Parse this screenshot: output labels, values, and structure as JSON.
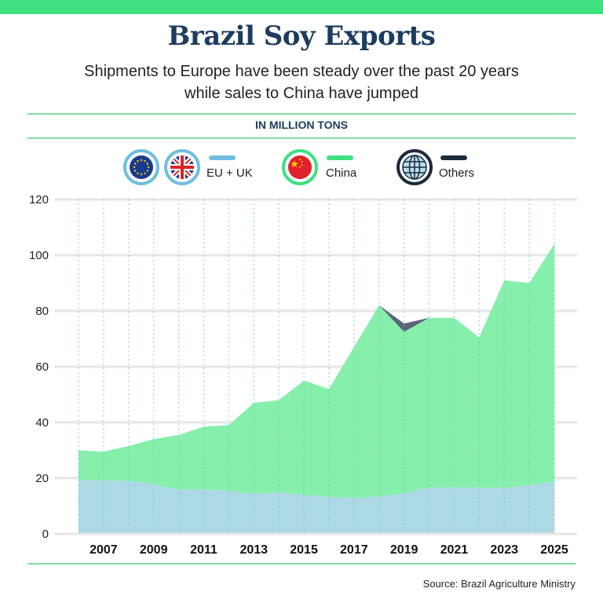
{
  "header": {
    "title": "Brazil Soy Exports",
    "subtitle_line1": "Shipments to Europe have been steady over the past 20 years",
    "subtitle_line2": "while sales to China have jumped",
    "unit": "IN MILLION TONS"
  },
  "legend": [
    {
      "label": "EU + UK",
      "color": "#6fbedf",
      "icons": [
        "eu-flag-icon",
        "uk-flag-icon"
      ]
    },
    {
      "label": "China",
      "color": "#3ee07f",
      "icons": [
        "china-flag-icon"
      ]
    },
    {
      "label": "Others",
      "color": "#1c2a3a",
      "icons": [
        "globe-icon"
      ]
    }
  ],
  "colors": {
    "accent": "#3ee07f",
    "title": "#1d3c5e",
    "eu_area": "#add8e6",
    "china_area": "#86efab",
    "others_area": "#5a6577"
  },
  "footer": {
    "source": "Source: Brazil Agriculture Ministry"
  },
  "chart_data": {
    "type": "area",
    "stacked": true,
    "title": "Brazil Soy Exports",
    "ylabel": "IN MILLION TONS",
    "ylim": [
      0,
      120
    ],
    "yticks": [
      0,
      20,
      40,
      60,
      80,
      100,
      120
    ],
    "grid": true,
    "legend_position": "top",
    "x": [
      2006,
      2007,
      2008,
      2009,
      2010,
      2011,
      2012,
      2013,
      2014,
      2015,
      2016,
      2017,
      2018,
      2019,
      2020,
      2021,
      2022,
      2023,
      2024,
      2025
    ],
    "xtick_labels": [
      "2007",
      "2009",
      "2011",
      "2013",
      "2015",
      "2017",
      "2019",
      "2021",
      "2023",
      "2025"
    ],
    "series": [
      {
        "name": "EU + UK",
        "values": [
          19.3,
          19.2,
          19,
          17.8,
          15.8,
          16,
          15.5,
          14.3,
          15,
          14,
          13.3,
          12.8,
          13.5,
          14.5,
          16.7,
          16.7,
          16.7,
          16.5,
          17.5,
          18.8
        ]
      },
      {
        "name": "China",
        "values": [
          10.7,
          10.3,
          12.5,
          16.2,
          19.7,
          22.5,
          23.5,
          32.7,
          33,
          41,
          38.7,
          54.2,
          68.5,
          58,
          60.8,
          60.8,
          53.8,
          74.5,
          72.5,
          85.2
        ]
      },
      {
        "name": "Others",
        "values": [
          0,
          0,
          0,
          0,
          0,
          0,
          0,
          0,
          0,
          0,
          0,
          0,
          0,
          3,
          0,
          0,
          0,
          0,
          0,
          0
        ]
      }
    ]
  }
}
